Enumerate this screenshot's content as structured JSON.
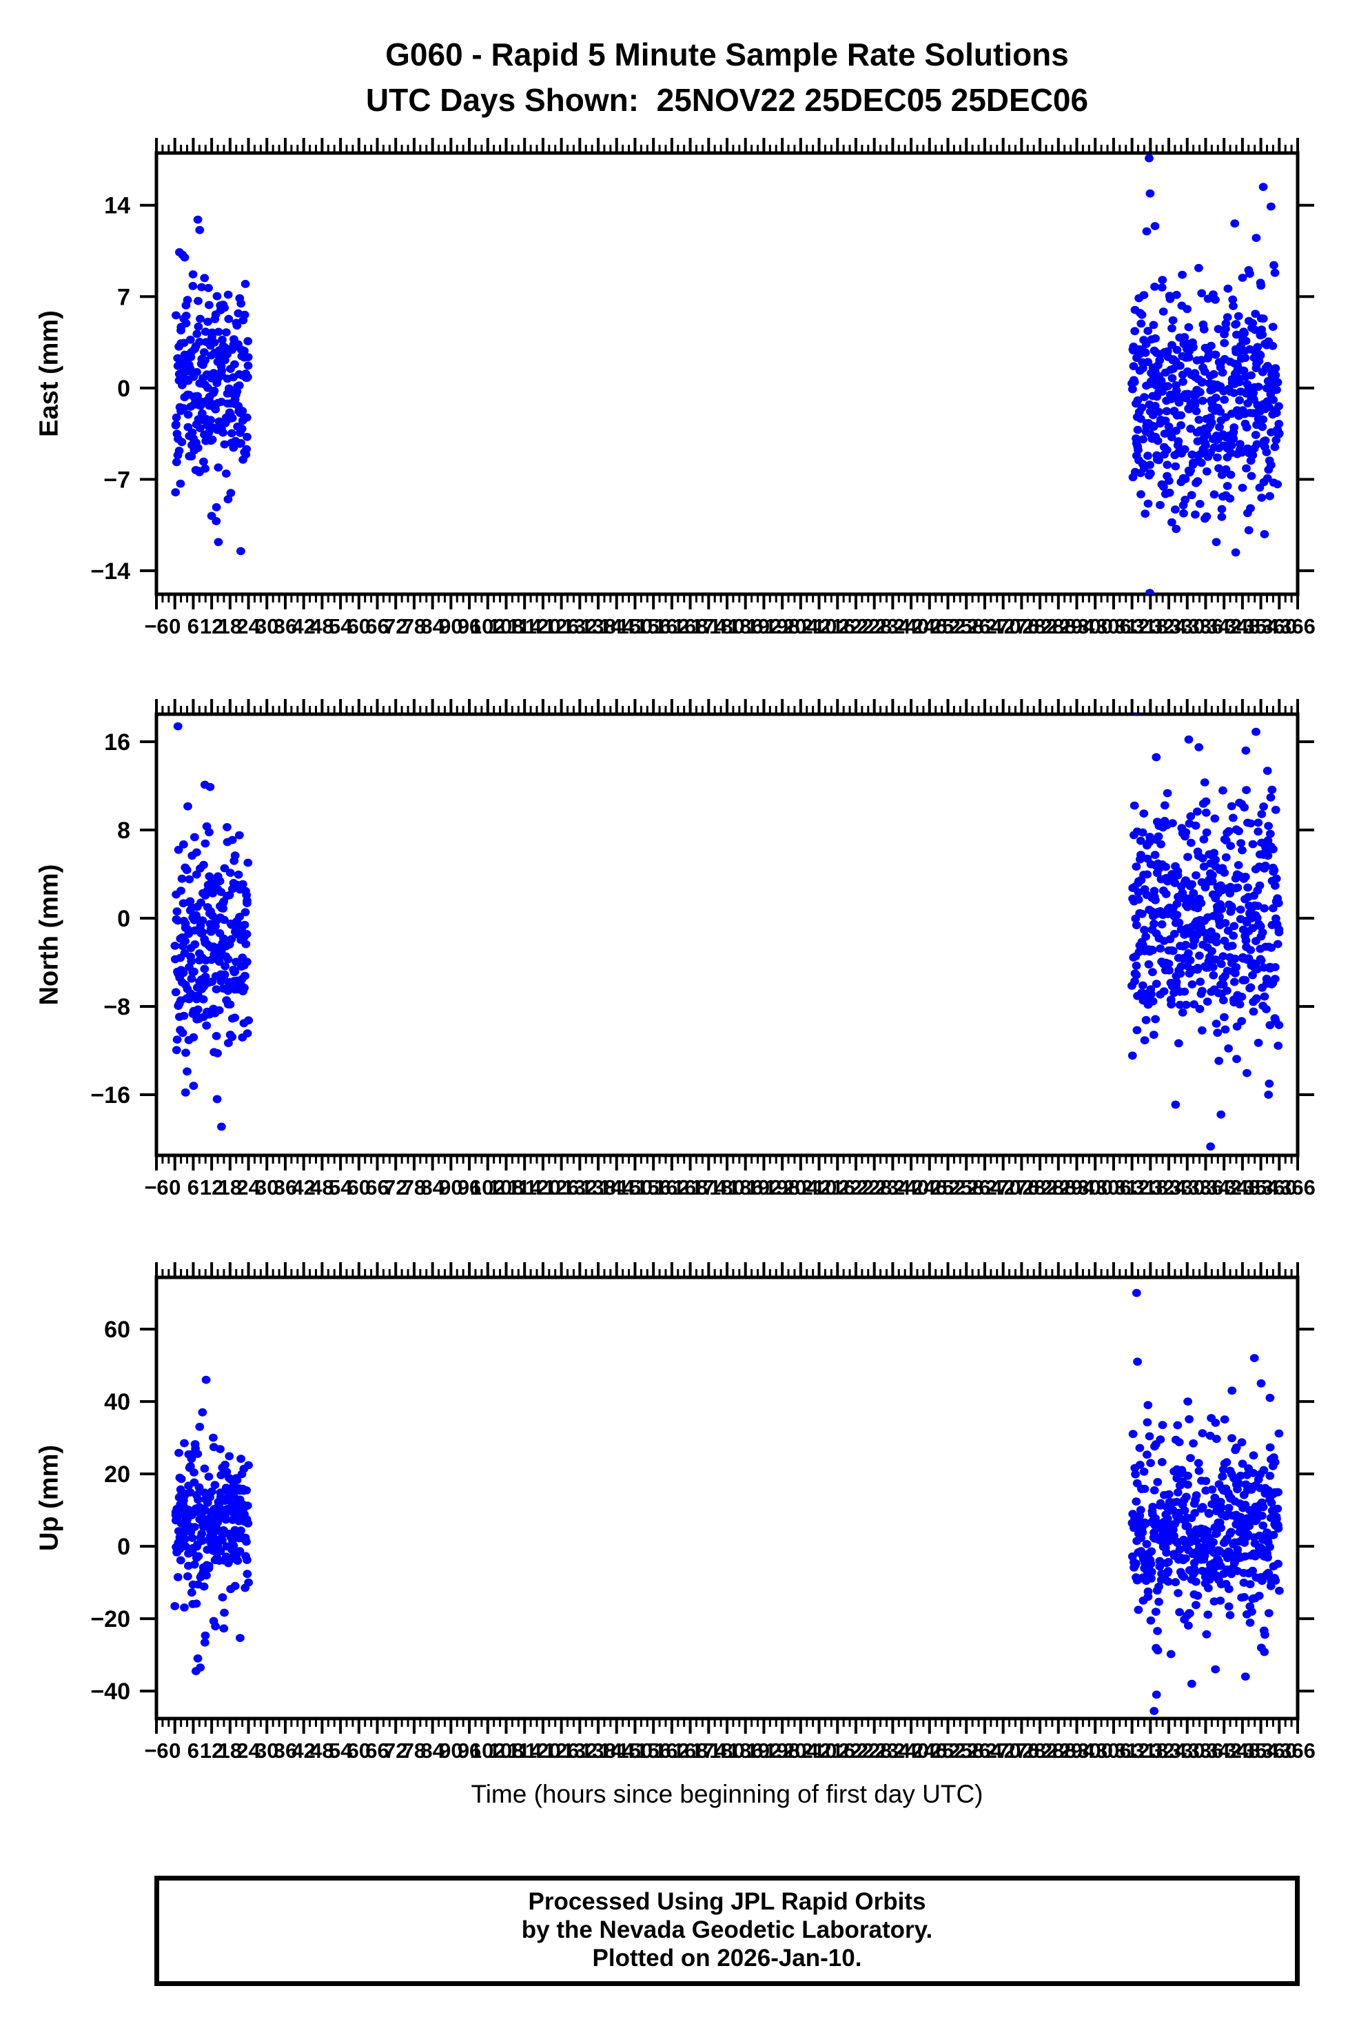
{
  "figure": {
    "title_line1": "G060 - Rapid 5 Minute Sample Rate Solutions",
    "title_line2": "UTC Days Shown:  25NOV22 25DEC05 25DEC06",
    "background": "#ffffff"
  },
  "style": {
    "marker_color": "#0000ff",
    "axis_color": "#000000"
  },
  "x_axis": {
    "title": "Time (hours since beginning of first day UTC)",
    "min": -6,
    "max": 366,
    "major_step": 6,
    "minor_step": 2
  },
  "footer": {
    "line1": "Processed Using JPL Rapid Orbits",
    "line2": "by the Nevada Geodetic Laboratory.",
    "line3": "Plotted on 2026-Jan-10."
  },
  "chart_data": [
    {
      "type": "scatter",
      "ylabel": "East (mm)",
      "yticks": [
        14,
        7,
        0,
        -7,
        -14
      ],
      "ymin": -15.8,
      "ymax": 18.0,
      "xlim": [
        -6,
        366
      ],
      "clusters": [
        {
          "x_range": [
            0.1,
            24.0
          ],
          "n": 255,
          "mean": 0.2,
          "std": 3.6,
          "clip": [
            -9.5,
            9.2
          ],
          "seed": 107
        },
        {
          "x_range": [
            312.0,
            360.0
          ],
          "n": 505,
          "mean": -0.5,
          "std": 4.0,
          "clip": [
            -10.5,
            9.6
          ],
          "seed": 117
        }
      ],
      "outliers": [
        [
          7.5,
          12.9
        ],
        [
          8.1,
          12.1
        ],
        [
          2.5,
          10.2
        ],
        [
          3.2,
          10.0
        ],
        [
          1.5,
          10.4
        ],
        [
          14.2,
          -11.8
        ],
        [
          12.0,
          -9.8
        ],
        [
          13.5,
          -10.2
        ],
        [
          21.5,
          -12.5
        ],
        [
          317.6,
          17.6
        ],
        [
          317.9,
          14.9
        ],
        [
          319.5,
          12.4
        ],
        [
          316.8,
          12.0
        ],
        [
          345.5,
          12.6
        ],
        [
          354.8,
          15.4
        ],
        [
          357.3,
          13.9
        ],
        [
          352.5,
          11.5
        ],
        [
          317.8,
          -15.7
        ],
        [
          339.5,
          -11.8
        ],
        [
          345.8,
          -12.6
        ],
        [
          355.2,
          -11.2
        ],
        [
          350.1,
          -10.9
        ],
        [
          326.4,
          -10.8
        ]
      ]
    },
    {
      "type": "scatter",
      "ylabel": "North (mm)",
      "yticks": [
        16,
        8,
        0,
        -8,
        -16
      ],
      "ymin": -21.5,
      "ymax": 18.5,
      "xlim": [
        -6,
        366
      ],
      "clusters": [
        {
          "x_range": [
            0.1,
            24.0
          ],
          "n": 255,
          "mean": -2.5,
          "std": 4.8,
          "clip": [
            -14.5,
            12.5
          ],
          "seed": 207
        },
        {
          "x_range": [
            312.0,
            360.0
          ],
          "n": 505,
          "mean": 0.0,
          "std": 5.5,
          "clip": [
            -15.5,
            13.5
          ],
          "seed": 217
        }
      ],
      "outliers": [
        [
          1.0,
          17.4
        ],
        [
          9.8,
          12.1
        ],
        [
          11.5,
          11.9
        ],
        [
          3.5,
          -15.8
        ],
        [
          6.1,
          -15.2
        ],
        [
          13.8,
          -16.4
        ],
        [
          15.2,
          -18.9
        ],
        [
          313.2,
          18.8
        ],
        [
          330.5,
          16.2
        ],
        [
          333.8,
          15.5
        ],
        [
          352.4,
          16.9
        ],
        [
          349.1,
          15.2
        ],
        [
          319.9,
          14.6
        ],
        [
          337.6,
          -20.7
        ],
        [
          341.0,
          -17.8
        ],
        [
          326.2,
          -16.9
        ],
        [
          356.5,
          -16.0
        ]
      ]
    },
    {
      "type": "scatter",
      "ylabel": "Up (mm)",
      "yticks": [
        60,
        40,
        20,
        0,
        -20,
        -40
      ],
      "ymin": -47.6,
      "ymax": 74.3,
      "xlim": [
        -6,
        366
      ],
      "clusters": [
        {
          "x_range": [
            0.1,
            24.0
          ],
          "n": 255,
          "mean": 7.0,
          "std": 11.0,
          "clip": [
            -28.0,
            29.0
          ],
          "seed": 307
        },
        {
          "x_range": [
            312.0,
            360.0
          ],
          "n": 505,
          "mean": 4.0,
          "std": 13.0,
          "clip": [
            -30.0,
            36.0
          ],
          "seed": 317
        }
      ],
      "outliers": [
        [
          10.2,
          46.0
        ],
        [
          9.0,
          37.0
        ],
        [
          8.1,
          33.0
        ],
        [
          12.5,
          30.0
        ],
        [
          3.1,
          28.5
        ],
        [
          7.5,
          -31.0
        ],
        [
          8.3,
          -33.5
        ],
        [
          6.9,
          -34.5
        ],
        [
          313.5,
          70.0
        ],
        [
          313.8,
          51.0
        ],
        [
          351.9,
          52.0
        ],
        [
          354.1,
          45.0
        ],
        [
          330.2,
          40.0
        ],
        [
          344.6,
          43.0
        ],
        [
          357.0,
          41.0
        ],
        [
          317.2,
          39.0
        ],
        [
          319.2,
          -45.5
        ],
        [
          320.0,
          -41.0
        ],
        [
          331.5,
          -38.0
        ],
        [
          349.0,
          -36.0
        ],
        [
          339.2,
          -34.0
        ]
      ]
    }
  ]
}
